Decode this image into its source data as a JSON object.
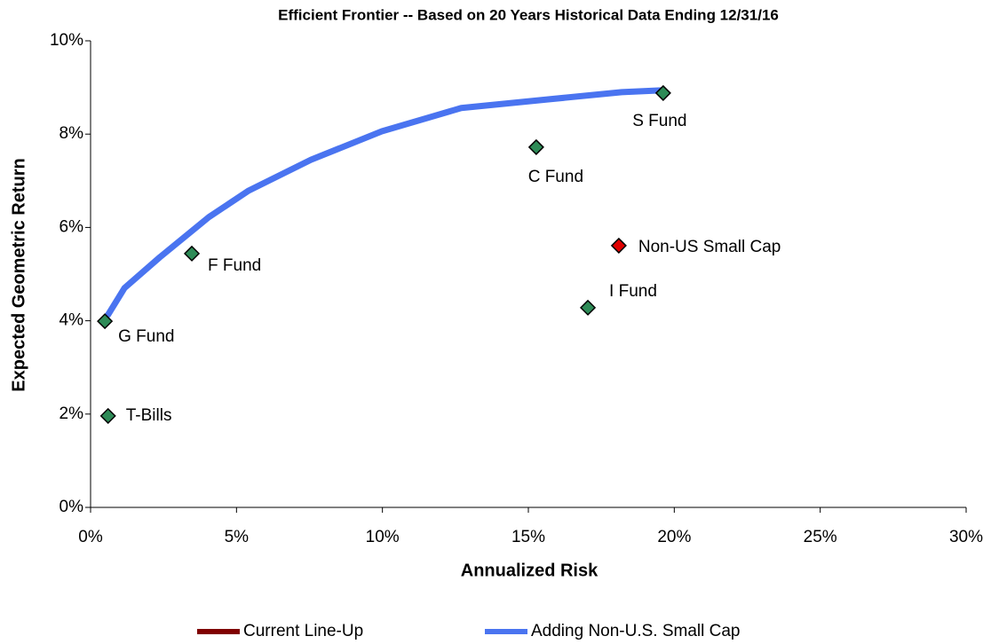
{
  "chart_data": {
    "type": "scatter",
    "title": "Efficient Frontier -- Based on 20 Years Historical Data Ending 12/31/16",
    "xlabel": "Annualized Risk",
    "ylabel": "Expected Geometric Return",
    "xlim": [
      0,
      30
    ],
    "ylim": [
      0,
      10
    ],
    "xticks": [
      {
        "value": 0,
        "label": "0%"
      },
      {
        "value": 5,
        "label": "5%"
      },
      {
        "value": 10,
        "label": "10%"
      },
      {
        "value": 15,
        "label": "15%"
      },
      {
        "value": 20,
        "label": "20%"
      },
      {
        "value": 25,
        "label": "25%"
      },
      {
        "value": 30,
        "label": "30%"
      }
    ],
    "yticks": [
      {
        "value": 0,
        "label": "0%"
      },
      {
        "value": 2,
        "label": "2%"
      },
      {
        "value": 4,
        "label": "4%"
      },
      {
        "value": 6,
        "label": "6%"
      },
      {
        "value": 8,
        "label": "8%"
      },
      {
        "value": 10,
        "label": "10%"
      }
    ],
    "series": [
      {
        "name": "Current Line-Up",
        "color": "#800000",
        "x": [],
        "values": []
      },
      {
        "name": "Adding Non-U.S. Small Cap",
        "color": "#4a74f0",
        "x": [
          0.6,
          1.16,
          2.37,
          4.05,
          5.42,
          7.55,
          9.98,
          12.7,
          15.76,
          18.2,
          19.62
        ],
        "values": [
          4.13,
          4.7,
          5.36,
          6.22,
          6.79,
          7.45,
          8.06,
          8.56,
          8.75,
          8.9,
          8.94
        ]
      }
    ],
    "points": [
      {
        "label": "G Fund",
        "x": 0.49,
        "y": 3.99,
        "color": "#2e8b57"
      },
      {
        "label": "T-Bills",
        "x": 0.6,
        "y": 1.96,
        "color": "#2e8b57"
      },
      {
        "label": "F Fund",
        "x": 3.47,
        "y": 5.44,
        "color": "#2e8b57"
      },
      {
        "label": "C Fund",
        "x": 15.27,
        "y": 7.72,
        "color": "#2e8b57"
      },
      {
        "label": "S Fund",
        "x": 19.62,
        "y": 8.88,
        "color": "#2e8b57"
      },
      {
        "label": "I Fund",
        "x": 17.04,
        "y": 4.28,
        "color": "#2e8b57"
      },
      {
        "label": "Non-US Small Cap",
        "x": 18.1,
        "y": 5.61,
        "color": "#e00000"
      }
    ]
  }
}
